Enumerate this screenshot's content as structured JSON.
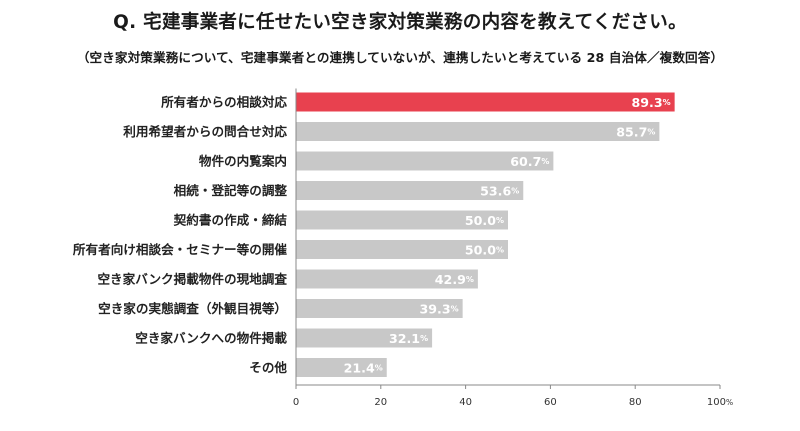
{
  "title": "Q. 宅建事業者に任せたい空き家対策業務の内容を教えてください。",
  "subtitle": "（空き家対策業務について、宅建事業者との連携していないが、連携したいと考えている 28 自治体／複数回答）",
  "chart_data": {
    "type": "bar",
    "orientation": "horizontal",
    "categories": [
      "所有者からの相談対応",
      "利用希望者からの問合せ対応",
      "物件の内覧案内",
      "相続・登記等の調整",
      "契約書の作成・締結",
      "所有者向け相談会・セミナー等の開催",
      "空き家バンク掲載物件の現地調査",
      "空き家の実態調査（外観目視等）",
      "空き家バンクへの物件掲載",
      "その他"
    ],
    "values": [
      89.3,
      85.7,
      60.7,
      53.6,
      50.0,
      50.0,
      42.9,
      39.3,
      32.1,
      21.4
    ],
    "value_labels": [
      "89.3",
      "85.7",
      "60.7",
      "53.6",
      "50.0",
      "50.0",
      "42.9",
      "39.3",
      "32.1",
      "21.4"
    ],
    "value_unit": "%",
    "xlim": [
      0,
      100
    ],
    "xticks": [
      "0",
      "20",
      "40",
      "60",
      "80",
      "100"
    ],
    "xtick_unit": "%",
    "colors": {
      "highlight": "#e8414f",
      "bar": "#c8c8c8",
      "axis": "#888888"
    },
    "highlight_index": 0,
    "grid": false
  }
}
